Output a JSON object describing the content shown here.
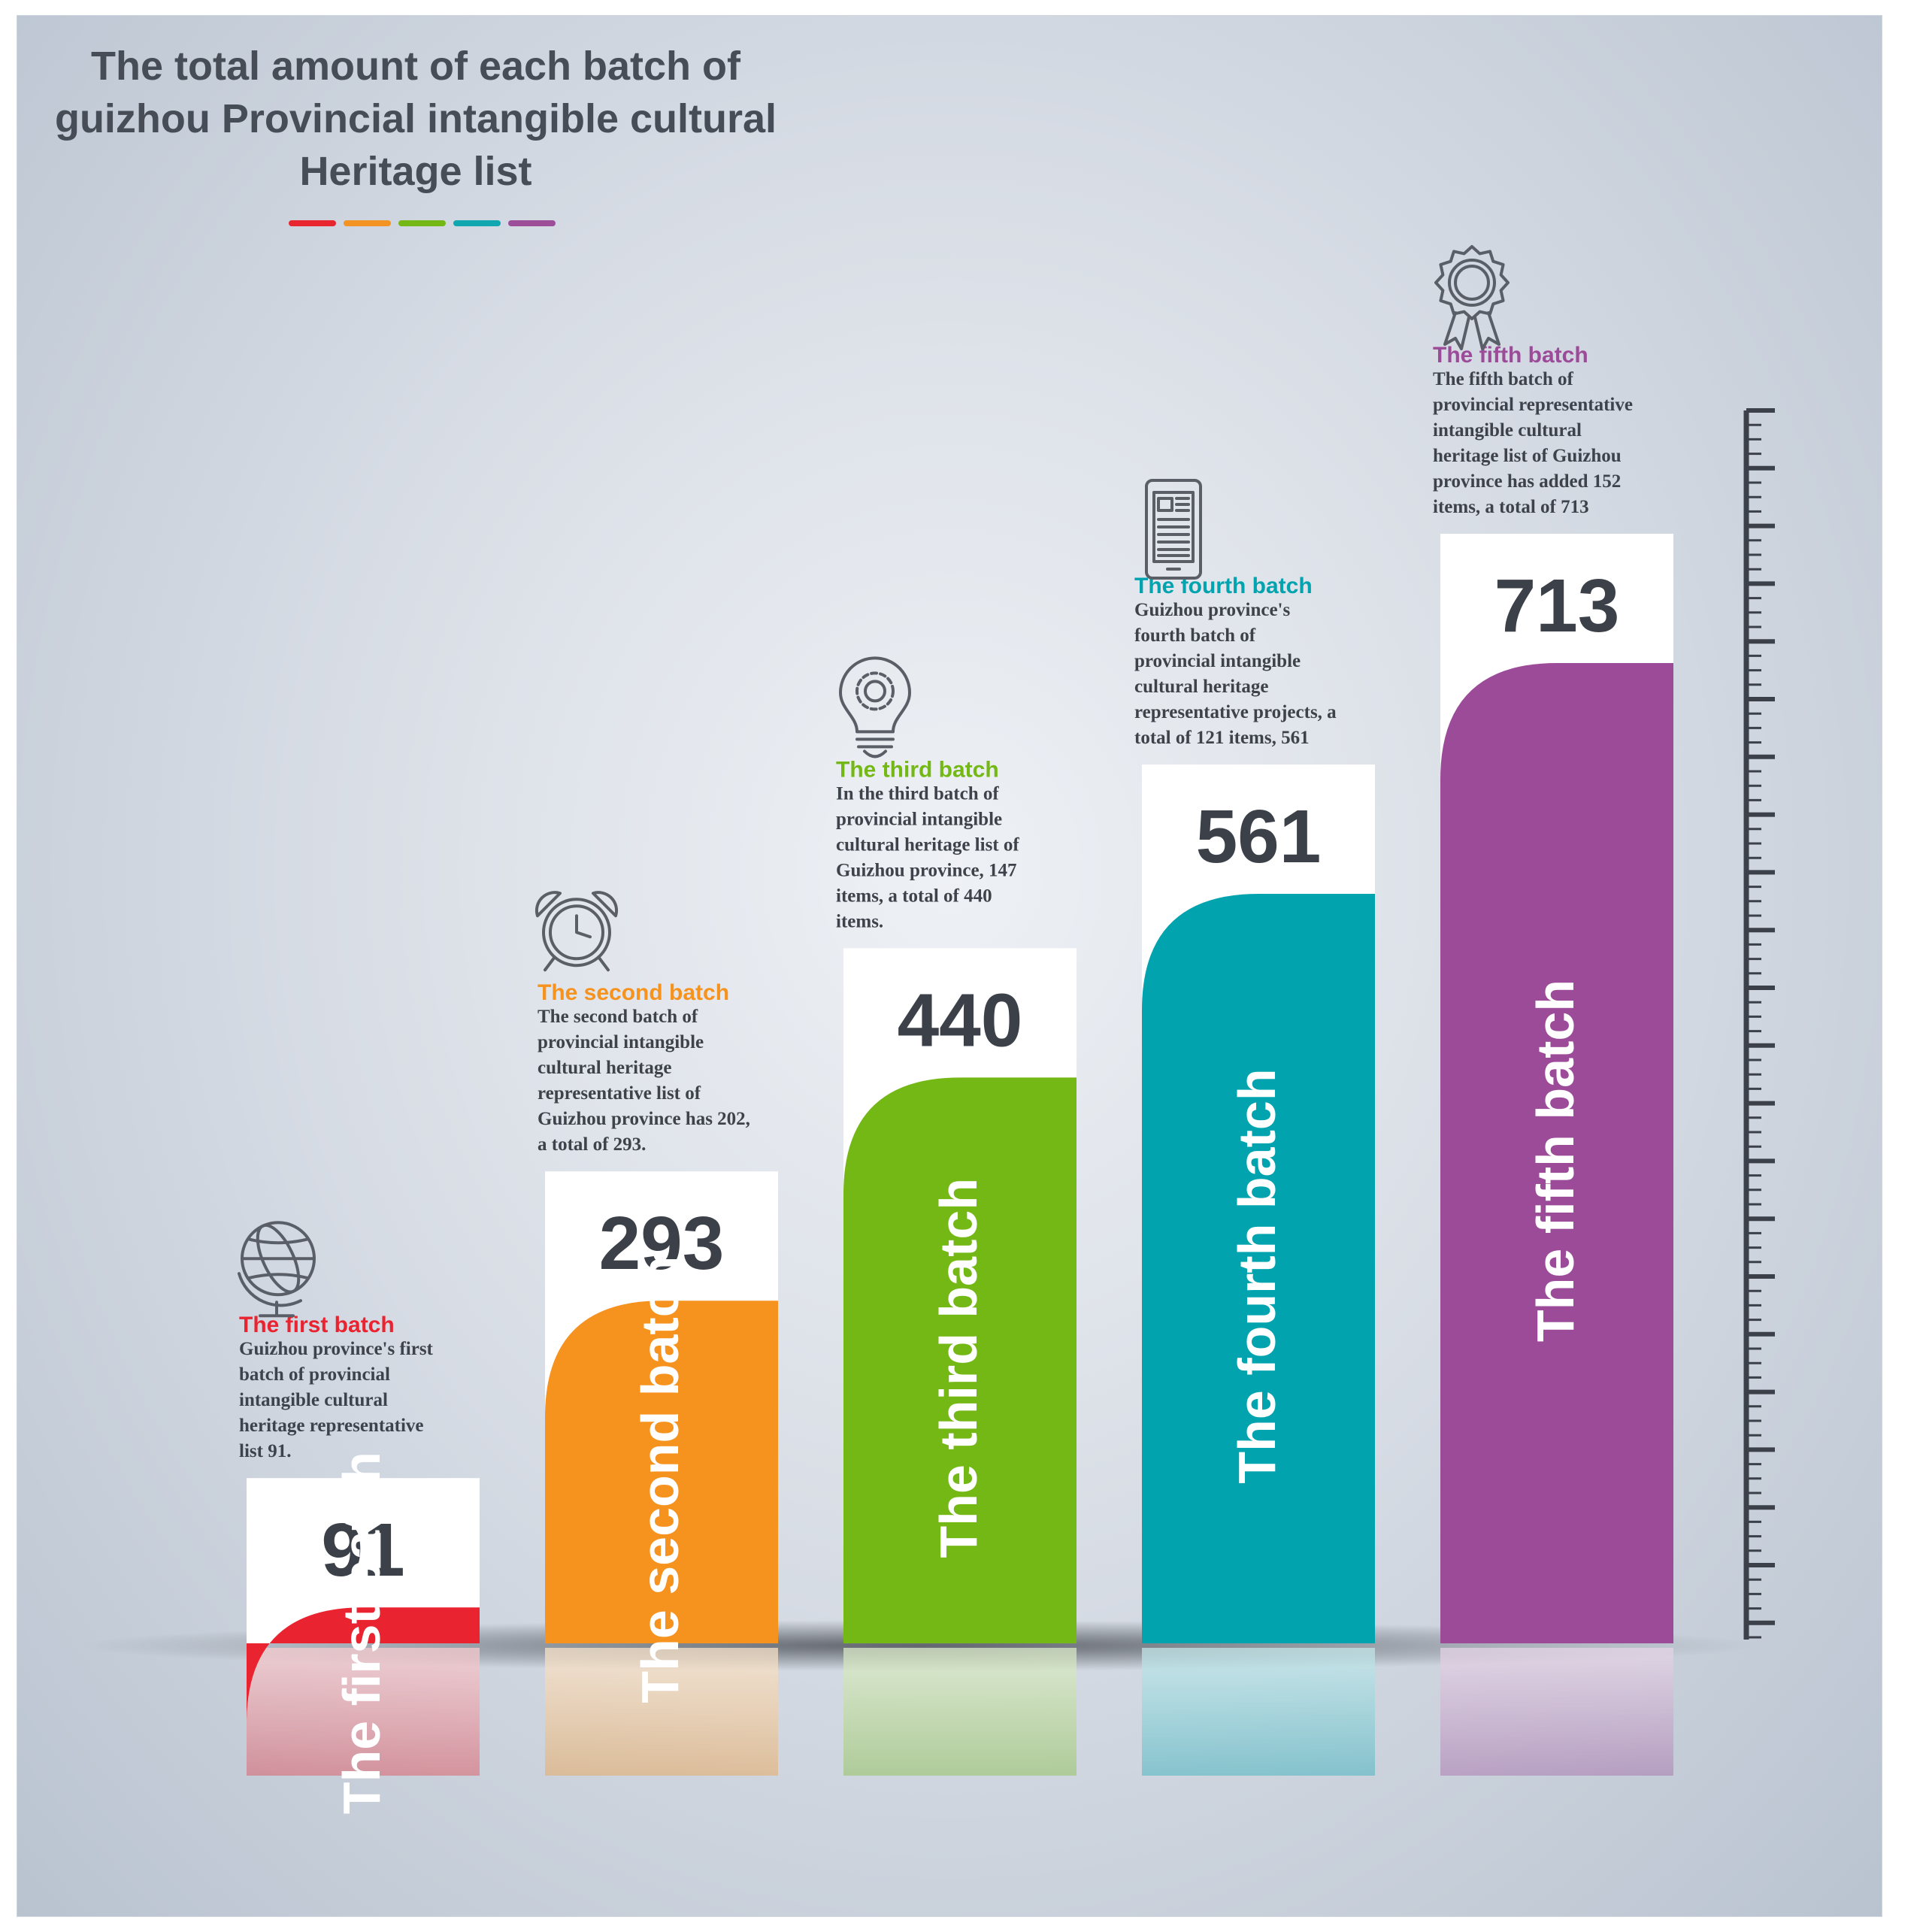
{
  "title_lines": [
    "The total amount of each batch of",
    "guizhou Provincial intangible cultural",
    "Heritage list"
  ],
  "title_accent_colors": [
    "#e8262f",
    "#f39323",
    "#74b816",
    "#11a7b0",
    "#9c4e99"
  ],
  "chart_data": {
    "type": "bar",
    "categories": [
      "The first batch",
      "The second batch",
      "The third batch",
      "The fourth batch",
      "The fifth batch"
    ],
    "values": [
      91,
      293,
      440,
      561,
      713
    ],
    "value_labels": [
      "91",
      "293",
      "440",
      "561",
      "713"
    ],
    "bar_labels": [
      "The first batch",
      "The second batch",
      "The third batch",
      "The fourth batch",
      "The fifth batch"
    ],
    "colors": [
      "#e9232f",
      "#f6921e",
      "#74b816",
      "#00a3ae",
      "#9c4b99"
    ],
    "icons": [
      "globe-icon",
      "alarm-clock-icon",
      "lightbulb-gear-icon",
      "tablet-document-icon",
      "award-medal-icon"
    ],
    "captions": [
      {
        "title": "The first batch",
        "lines": [
          "Guizhou province's first",
          "batch of provincial",
          "intangible cultural",
          "heritage representative",
          "list 91."
        ]
      },
      {
        "title": "The second batch",
        "lines": [
          "The second batch of",
          "provincial intangible",
          "cultural heritage",
          "representative list of",
          "Guizhou province has 202,",
          "a total of 293."
        ]
      },
      {
        "title": "The third batch",
        "lines": [
          "In the third batch of",
          "provincial intangible",
          "cultural heritage list of",
          "Guizhou province, 147",
          "items, a total of 440",
          "items."
        ]
      },
      {
        "title": "The fourth batch",
        "lines": [
          "Guizhou province's",
          "fourth batch of",
          "provincial intangible",
          "cultural heritage",
          "representative projects, a",
          "total of 121 items, 561"
        ]
      },
      {
        "title": "The fifth batch",
        "lines": [
          "The fifth batch of",
          "provincial representative",
          "intangible cultural",
          "heritage list of Guizhou",
          "province has added 152",
          "items, a total of 713"
        ]
      }
    ],
    "xlabel": "",
    "ylabel": "",
    "ylim": [
      0,
      713
    ],
    "grid": false,
    "legend": "none"
  }
}
